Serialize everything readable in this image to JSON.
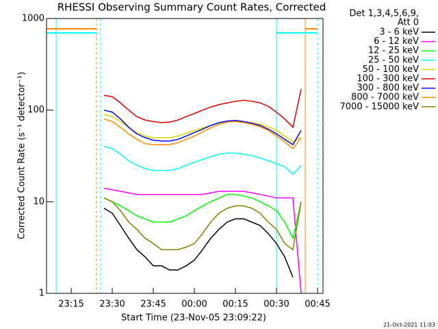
{
  "chart_data": {
    "type": "line",
    "title": "RHESSI Observing Summary Count Rates, Corrected",
    "x_label": "Start Time (23-Nov-05 23:09:22)",
    "y_label": "Corrected Count Rate (s⁻¹ detector⁻¹)",
    "legend_title": [
      "Det 1,3,4,5,6,9,",
      "Att 0"
    ],
    "footer": "21-Oct-2021 11:03",
    "log_y": true,
    "legend": "right",
    "xlim": [
      "23:06",
      "00:47"
    ],
    "xticks": [
      "23:15",
      "23:30",
      "23:45",
      "00:00",
      "00:15",
      "00:30",
      "00:45"
    ],
    "ylim": [
      1,
      1000
    ],
    "yticks": [
      1,
      10,
      100,
      1000
    ],
    "x": [
      "23:27",
      "23:30",
      "23:33",
      "23:36",
      "23:39",
      "23:42",
      "23:45",
      "23:48",
      "23:51",
      "23:54",
      "23:57",
      "00:00",
      "00:03",
      "00:06",
      "00:09",
      "00:12",
      "00:15",
      "00:18",
      "00:21",
      "00:24",
      "00:27",
      "00:30",
      "00:33",
      "00:36",
      "00:39"
    ],
    "series": [
      {
        "name": "3 - 6 keV",
        "color": "#000000",
        "values": [
          8.5,
          7.5,
          5.5,
          4,
          3,
          2.5,
          2,
          2,
          1.8,
          1.8,
          2,
          2.3,
          3,
          4,
          5,
          6,
          6.5,
          6.5,
          6,
          5.5,
          4.5,
          3.5,
          2.5,
          1.5,
          null
        ]
      },
      {
        "name": "6 - 12 keV",
        "color": "#ff00ff",
        "values": [
          14,
          13.5,
          13,
          12.5,
          12,
          12,
          12,
          12,
          12,
          12,
          12,
          12,
          12,
          12.5,
          13,
          13,
          13,
          13,
          12.5,
          12,
          11.5,
          11,
          11,
          11,
          1
        ]
      },
      {
        "name": "12 - 25 keV",
        "color": "#00ff00",
        "values": [
          11,
          10,
          9,
          8,
          7,
          6.5,
          6,
          6,
          6,
          6.5,
          7,
          8,
          9,
          10,
          11,
          12,
          12,
          11.5,
          11,
          10,
          9,
          8,
          6,
          4,
          10
        ]
      },
      {
        "name": "25 - 50 keV",
        "color": "#00ffff",
        "values": [
          40,
          38,
          33,
          28,
          25,
          23,
          22,
          22,
          22,
          23,
          25,
          27,
          29,
          31,
          33,
          34,
          34,
          33,
          32,
          30,
          28,
          26,
          24,
          20,
          25
        ]
      },
      {
        "name": "50 - 100 keV",
        "color": "#d8d800",
        "values": [
          90,
          85,
          75,
          65,
          57,
          52,
          50,
          50,
          50,
          52,
          56,
          60,
          64,
          68,
          72,
          74,
          76,
          75,
          73,
          70,
          66,
          60,
          52,
          45,
          50
        ]
      },
      {
        "name": "100 - 300 keV",
        "color": "#e00000",
        "values": [
          145,
          140,
          120,
          100,
          85,
          78,
          75,
          73,
          74,
          78,
          85,
          92,
          100,
          108,
          115,
          120,
          125,
          128,
          125,
          120,
          110,
          95,
          80,
          65,
          170
        ]
      },
      {
        "name": "300 - 800 keV",
        "color": "#0000ff",
        "values": [
          100,
          95,
          80,
          65,
          55,
          50,
          47,
          46,
          46,
          48,
          52,
          57,
          62,
          68,
          73,
          76,
          77,
          75,
          72,
          68,
          62,
          55,
          48,
          42,
          60
        ]
      },
      {
        "name": "800 - 7000 keV",
        "color": "#ff8c00",
        "values": [
          80,
          75,
          65,
          55,
          48,
          43,
          42,
          42,
          42,
          44,
          48,
          52,
          58,
          64,
          70,
          74,
          75,
          73,
          70,
          66,
          60,
          52,
          45,
          38,
          50
        ]
      },
      {
        "name": "7000 - 15000 keV",
        "color": "#808000",
        "values": [
          11,
          10,
          8,
          6,
          5,
          4,
          3.5,
          3,
          3,
          3,
          3.2,
          3.5,
          4.5,
          6,
          7.5,
          8.5,
          9,
          9,
          8.5,
          7.5,
          6,
          5,
          3.5,
          3,
          10
        ]
      }
    ]
  }
}
